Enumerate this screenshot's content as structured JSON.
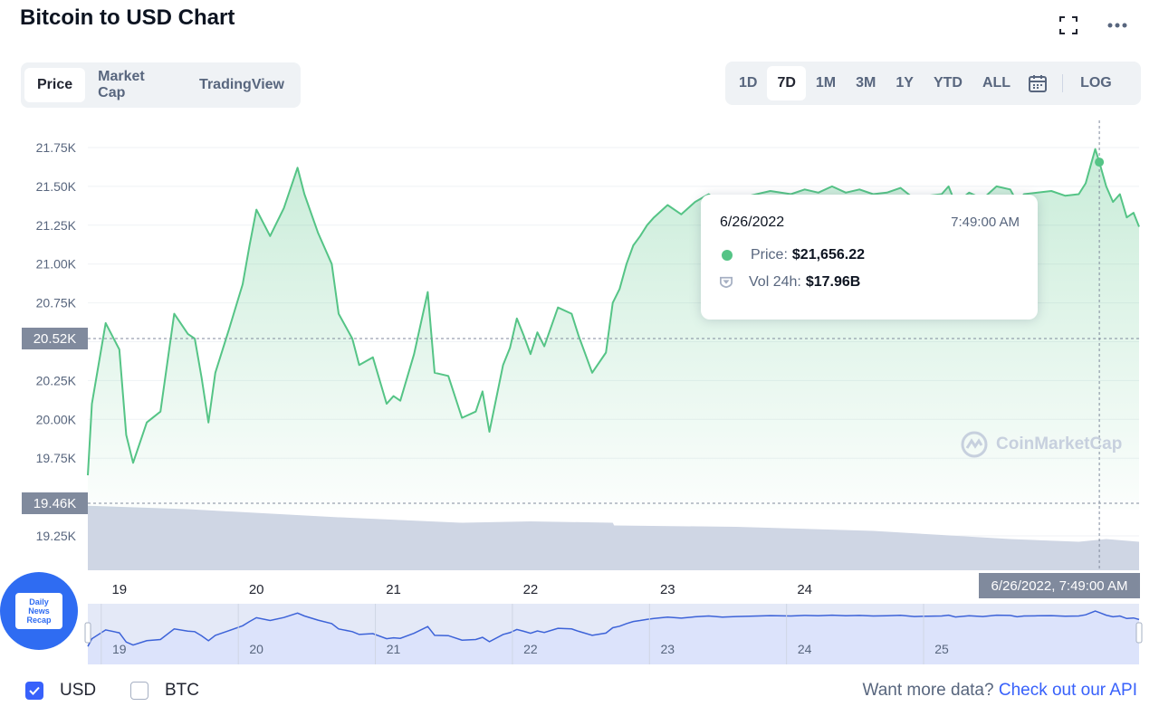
{
  "header": {
    "title": "Bitcoin to USD Chart",
    "fullscreen_icon": "fullscreen-icon",
    "more_icon": "more-icon"
  },
  "tabs": [
    {
      "label": "Price",
      "active": true
    },
    {
      "label": "Market Cap",
      "active": false
    },
    {
      "label": "TradingView",
      "active": false
    }
  ],
  "ranges": [
    {
      "label": "1D",
      "active": false
    },
    {
      "label": "7D",
      "active": true
    },
    {
      "label": "1M",
      "active": false
    },
    {
      "label": "3M",
      "active": false
    },
    {
      "label": "1Y",
      "active": false
    },
    {
      "label": "YTD",
      "active": false
    },
    {
      "label": "ALL",
      "active": false
    }
  ],
  "calendar_icon": "calendar-icon",
  "log_label": "LOG",
  "tooltip": {
    "date": "6/26/2022",
    "time": "7:49:00 AM",
    "price_label": "Price:",
    "price_value": "$21,656.22",
    "vol_label": "Vol 24h:",
    "vol_value": "$17.96B"
  },
  "crosshair_price_label": "20.52K",
  "low_price_label": "19.46K",
  "crosshair_time_label": "6/26/2022, 7:49:00 AM",
  "watermark": "CoinMarketCap",
  "badge": {
    "line1": "Daily",
    "line2": "News",
    "line3": "Recap"
  },
  "footer": {
    "usd_label": "USD",
    "usd_checked": true,
    "btc_label": "BTC",
    "btc_checked": false,
    "api_text": "Want more data?",
    "api_link": "Check out our API"
  },
  "colors": {
    "price_line": "#55c486",
    "volume": "#cfd6e4",
    "brand": "#3861fb"
  },
  "chart_data": {
    "type": "area",
    "title": "Bitcoin to USD Chart",
    "range": "7D",
    "y_ticks": [
      "21.75K",
      "21.50K",
      "21.25K",
      "21.00K",
      "20.75K",
      "20.50K",
      "20.25K",
      "20.00K",
      "19.75K",
      "19.25K"
    ],
    "x_ticks": [
      "19",
      "20",
      "21",
      "22",
      "23",
      "24"
    ],
    "navigator_ticks": [
      "19",
      "20",
      "21",
      "22",
      "23",
      "24",
      "25"
    ],
    "ylim": [
      19100,
      21950
    ],
    "series": [
      {
        "name": "Price",
        "x": [
          18.77,
          18.8,
          18.9,
          19.0,
          19.05,
          19.1,
          19.2,
          19.3,
          19.4,
          19.5,
          19.55,
          19.6,
          19.65,
          19.7,
          19.8,
          19.9,
          19.95,
          20.0,
          20.1,
          20.2,
          20.3,
          20.35,
          20.45,
          20.55,
          20.6,
          20.7,
          20.75,
          20.85,
          20.95,
          21.0,
          21.05,
          21.15,
          21.25,
          21.3,
          21.4,
          21.5,
          21.6,
          21.65,
          21.7,
          21.8,
          21.85,
          21.9,
          21.95,
          22.0,
          22.05,
          22.1,
          22.2,
          22.3,
          22.35,
          22.45,
          22.55,
          22.6,
          22.65,
          22.7,
          22.75,
          22.8,
          22.85,
          22.9,
          23.0,
          23.1,
          23.2,
          23.3,
          23.4,
          23.5,
          23.6,
          23.75,
          23.9,
          24.0,
          24.1,
          24.2,
          24.3,
          24.4,
          24.5,
          24.6,
          24.7,
          24.8,
          24.9,
          25.0,
          25.05,
          25.1,
          25.2,
          25.3,
          25.4,
          25.5,
          25.55,
          25.6,
          25.7,
          25.8,
          25.9,
          26.0,
          26.05,
          26.12,
          26.15,
          26.2,
          26.25,
          26.3,
          26.35,
          26.4,
          26.44
        ],
        "values": [
          19640,
          20100,
          20620,
          20450,
          19900,
          19720,
          19980,
          20050,
          20680,
          20550,
          20520,
          20270,
          19980,
          20300,
          20580,
          20870,
          21120,
          21350,
          21180,
          21360,
          21620,
          21450,
          21200,
          21000,
          20680,
          20520,
          20350,
          20400,
          20100,
          20150,
          20120,
          20420,
          20820,
          20300,
          20280,
          20010,
          20050,
          20180,
          19920,
          20350,
          20460,
          20650,
          20540,
          20420,
          20560,
          20470,
          20720,
          20680,
          20540,
          20300,
          20430,
          20750,
          20840,
          21000,
          21120,
          21180,
          21250,
          21300,
          21380,
          21320,
          21400,
          21450,
          21380,
          21420,
          21440,
          21470,
          21450,
          21480,
          21460,
          21500,
          21460,
          21480,
          21450,
          21460,
          21490,
          21420,
          21440,
          21450,
          21500,
          21390,
          21460,
          21420,
          21500,
          21480,
          21400,
          21450,
          21460,
          21470,
          21440,
          21450,
          21520,
          21740,
          21656,
          21500,
          21400,
          21450,
          21300,
          21330,
          21240
        ]
      }
    ],
    "volume": {
      "name": "Vol 24h",
      "note": "relative volume band shown in grey below price",
      "x": [
        18.77,
        19.5,
        20.6,
        20.61,
        21.5,
        22.0,
        22.6,
        22.61,
        23.5,
        24.5,
        25.0,
        25.5,
        26.0,
        26.2,
        26.44
      ],
      "values": [
        0.95,
        0.9,
        0.78,
        0.78,
        0.7,
        0.72,
        0.7,
        0.66,
        0.64,
        0.58,
        0.52,
        0.46,
        0.42,
        0.46,
        0.42
      ]
    },
    "crosshair": {
      "x": 26.15,
      "price": 21656.22
    }
  }
}
